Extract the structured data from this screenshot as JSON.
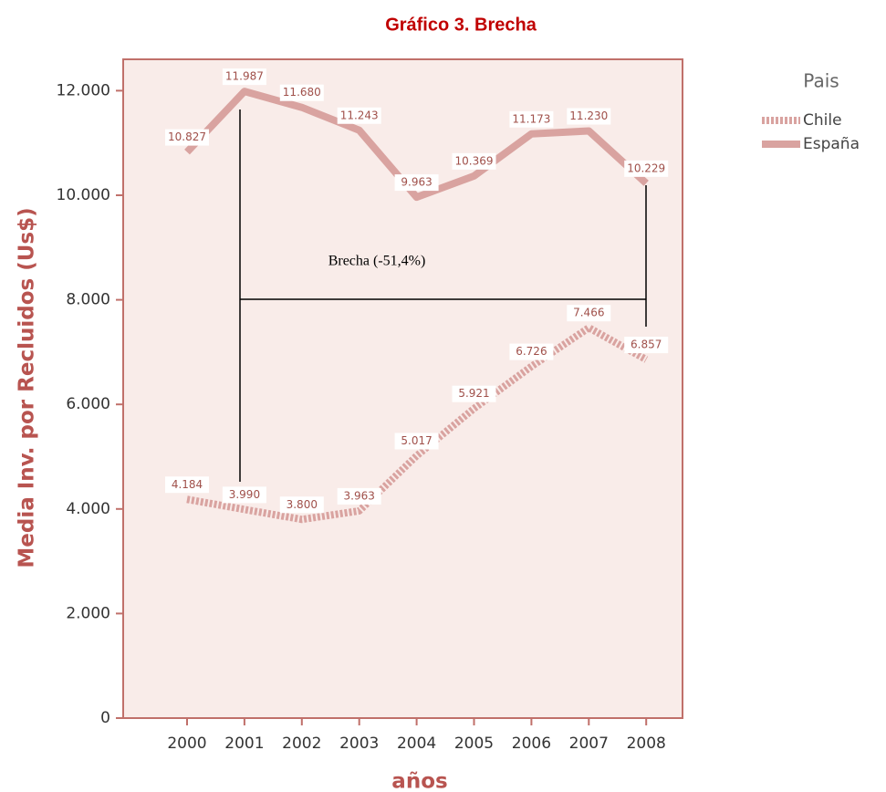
{
  "chart_data": {
    "type": "line",
    "title": "Gráfico 3. Brecha",
    "x_label": "años",
    "y_label": "Media Inv. por Recluidos (Us$)",
    "annotation": "Brecha (-51,4%)",
    "legend_title": "Pais",
    "categories": [
      "2000",
      "2001",
      "2002",
      "2003",
      "2004",
      "2005",
      "2006",
      "2007",
      "2008"
    ],
    "series": [
      {
        "name": "Chile",
        "color": "#d9a3a0",
        "dashed": true,
        "values": [
          4184,
          3990,
          3800,
          3963,
          5017,
          5921,
          6726,
          7466,
          6857
        ],
        "value_labels": [
          "4.184",
          "3.990",
          "3.800",
          "3.963",
          "5.017",
          "5.921",
          "6.726",
          "7.466",
          "6.857"
        ]
      },
      {
        "name": "España",
        "color": "#d9a3a0",
        "dashed": false,
        "values": [
          10827,
          11987,
          11680,
          11243,
          9963,
          10369,
          11173,
          11230,
          10229
        ],
        "value_labels": [
          "10.827",
          "11.987",
          "11.680",
          "11.243",
          "9.963",
          "10.369",
          "11.173",
          "11.230",
          "10.229"
        ]
      }
    ],
    "ylim": [
      0,
      12600
    ],
    "yticks": [
      0,
      {
        "value": 2000,
        "label": "2.000"
      },
      {
        "value": 4000,
        "label": "4.000"
      },
      {
        "value": 6000,
        "label": "6.000"
      },
      {
        "value": 8000,
        "label": "8.000"
      },
      {
        "value": 10000,
        "label": "10.000"
      },
      {
        "value": 12000,
        "label": "12.000"
      }
    ]
  }
}
